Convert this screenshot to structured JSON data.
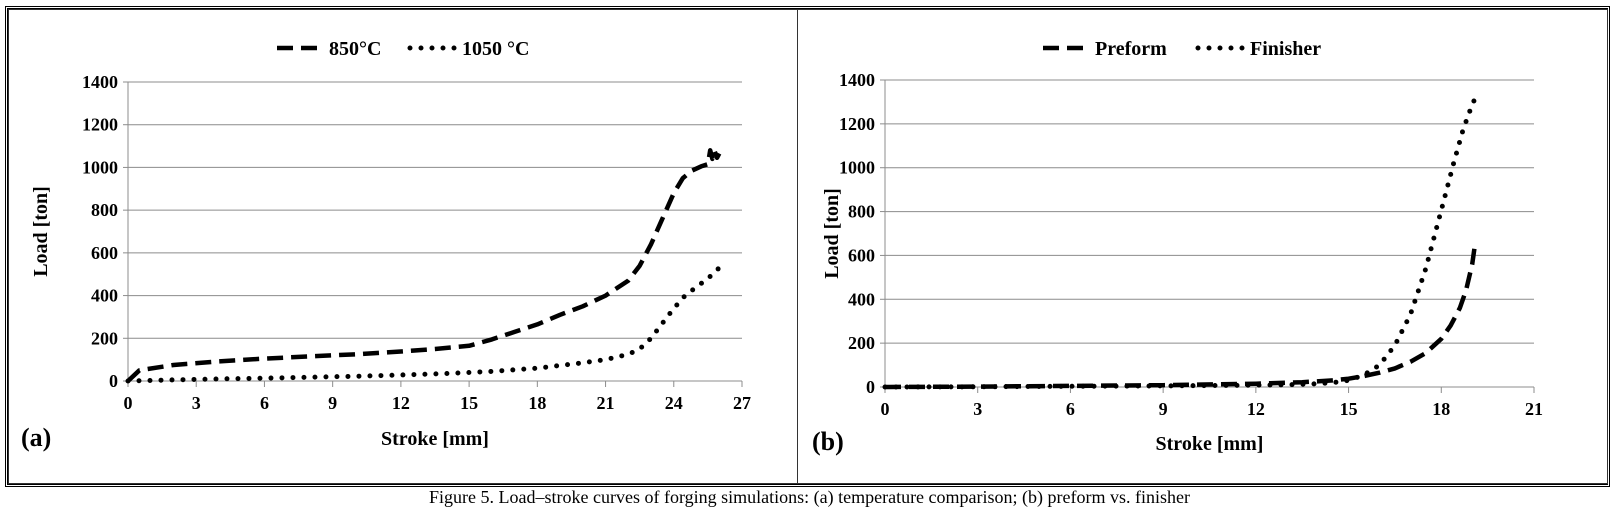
{
  "caption": "Figure 5. Load–stroke curves of forging simulations: (a) temperature comparison; (b) preform vs. finisher",
  "chart_data": [
    {
      "type": "line",
      "panel_label": "(a)",
      "title": "",
      "xlabel": "Stroke [mm]",
      "ylabel": "Load [ton]",
      "xlim": [
        0,
        27
      ],
      "ylim": [
        0,
        1400
      ],
      "xticks": [
        0,
        3,
        6,
        9,
        12,
        15,
        18,
        21,
        24,
        27
      ],
      "yticks": [
        0,
        200,
        400,
        600,
        800,
        1000,
        1200,
        1400
      ],
      "grid": "horizontal",
      "legend_position": "top-center",
      "series": [
        {
          "name": "850°C",
          "style": "dashed",
          "x": [
            0,
            0.5,
            2,
            4,
            6,
            8,
            10,
            12,
            13.5,
            15,
            16,
            17,
            18,
            19,
            20,
            21,
            22,
            22.5,
            23,
            23.5,
            24,
            24.4,
            24.8,
            25.2,
            25.5,
            25.6,
            25.7,
            25.8,
            25.9,
            26.0
          ],
          "y": [
            0,
            50,
            75,
            92,
            105,
            115,
            125,
            138,
            150,
            165,
            195,
            230,
            265,
            310,
            350,
            400,
            470,
            540,
            640,
            760,
            880,
            950,
            985,
            1005,
            1015,
            1080,
            1040,
            1075,
            1045,
            1065
          ]
        },
        {
          "name": "1050 °C",
          "style": "dotted",
          "x": [
            0,
            2,
            4,
            6,
            8,
            10,
            12,
            14,
            16,
            18,
            20,
            21,
            22,
            22.5,
            23,
            23.5,
            24,
            24.5,
            25,
            25.5,
            26
          ],
          "y": [
            0,
            5,
            10,
            13,
            18,
            22,
            28,
            35,
            45,
            60,
            85,
            100,
            125,
            150,
            200,
            270,
            340,
            400,
            440,
            480,
            530
          ]
        }
      ]
    },
    {
      "type": "line",
      "panel_label": "(b)",
      "title": "",
      "xlabel": "Stroke [mm]",
      "ylabel": "Load [ton]",
      "xlim": [
        0,
        21
      ],
      "ylim": [
        0,
        1400
      ],
      "xticks": [
        0,
        3,
        6,
        9,
        12,
        15,
        18,
        21
      ],
      "yticks": [
        0,
        200,
        400,
        600,
        800,
        1000,
        1200,
        1400
      ],
      "grid": "horizontal",
      "legend_position": "top-center",
      "series": [
        {
          "name": "Preform",
          "style": "dashed",
          "x": [
            0,
            3,
            6,
            9,
            12,
            13.5,
            14.5,
            15,
            15.5,
            16,
            16.5,
            17,
            17.5,
            18,
            18.3,
            18.6,
            18.8,
            19.0,
            19.1
          ],
          "y": [
            0,
            2,
            5,
            8,
            15,
            22,
            30,
            38,
            50,
            65,
            85,
            115,
            155,
            220,
            280,
            360,
            440,
            560,
            660
          ]
        },
        {
          "name": "Finisher",
          "style": "dotted",
          "x": [
            0,
            3,
            6,
            9,
            12,
            13,
            14,
            14.5,
            15,
            15.5,
            16,
            16.5,
            17,
            17.5,
            17.8,
            18.1,
            18.4,
            18.7,
            18.9,
            19.1
          ],
          "y": [
            0,
            1,
            3,
            5,
            8,
            10,
            15,
            20,
            30,
            55,
            100,
            190,
            330,
            540,
            700,
            860,
            1020,
            1170,
            1250,
            1320
          ]
        }
      ]
    }
  ]
}
